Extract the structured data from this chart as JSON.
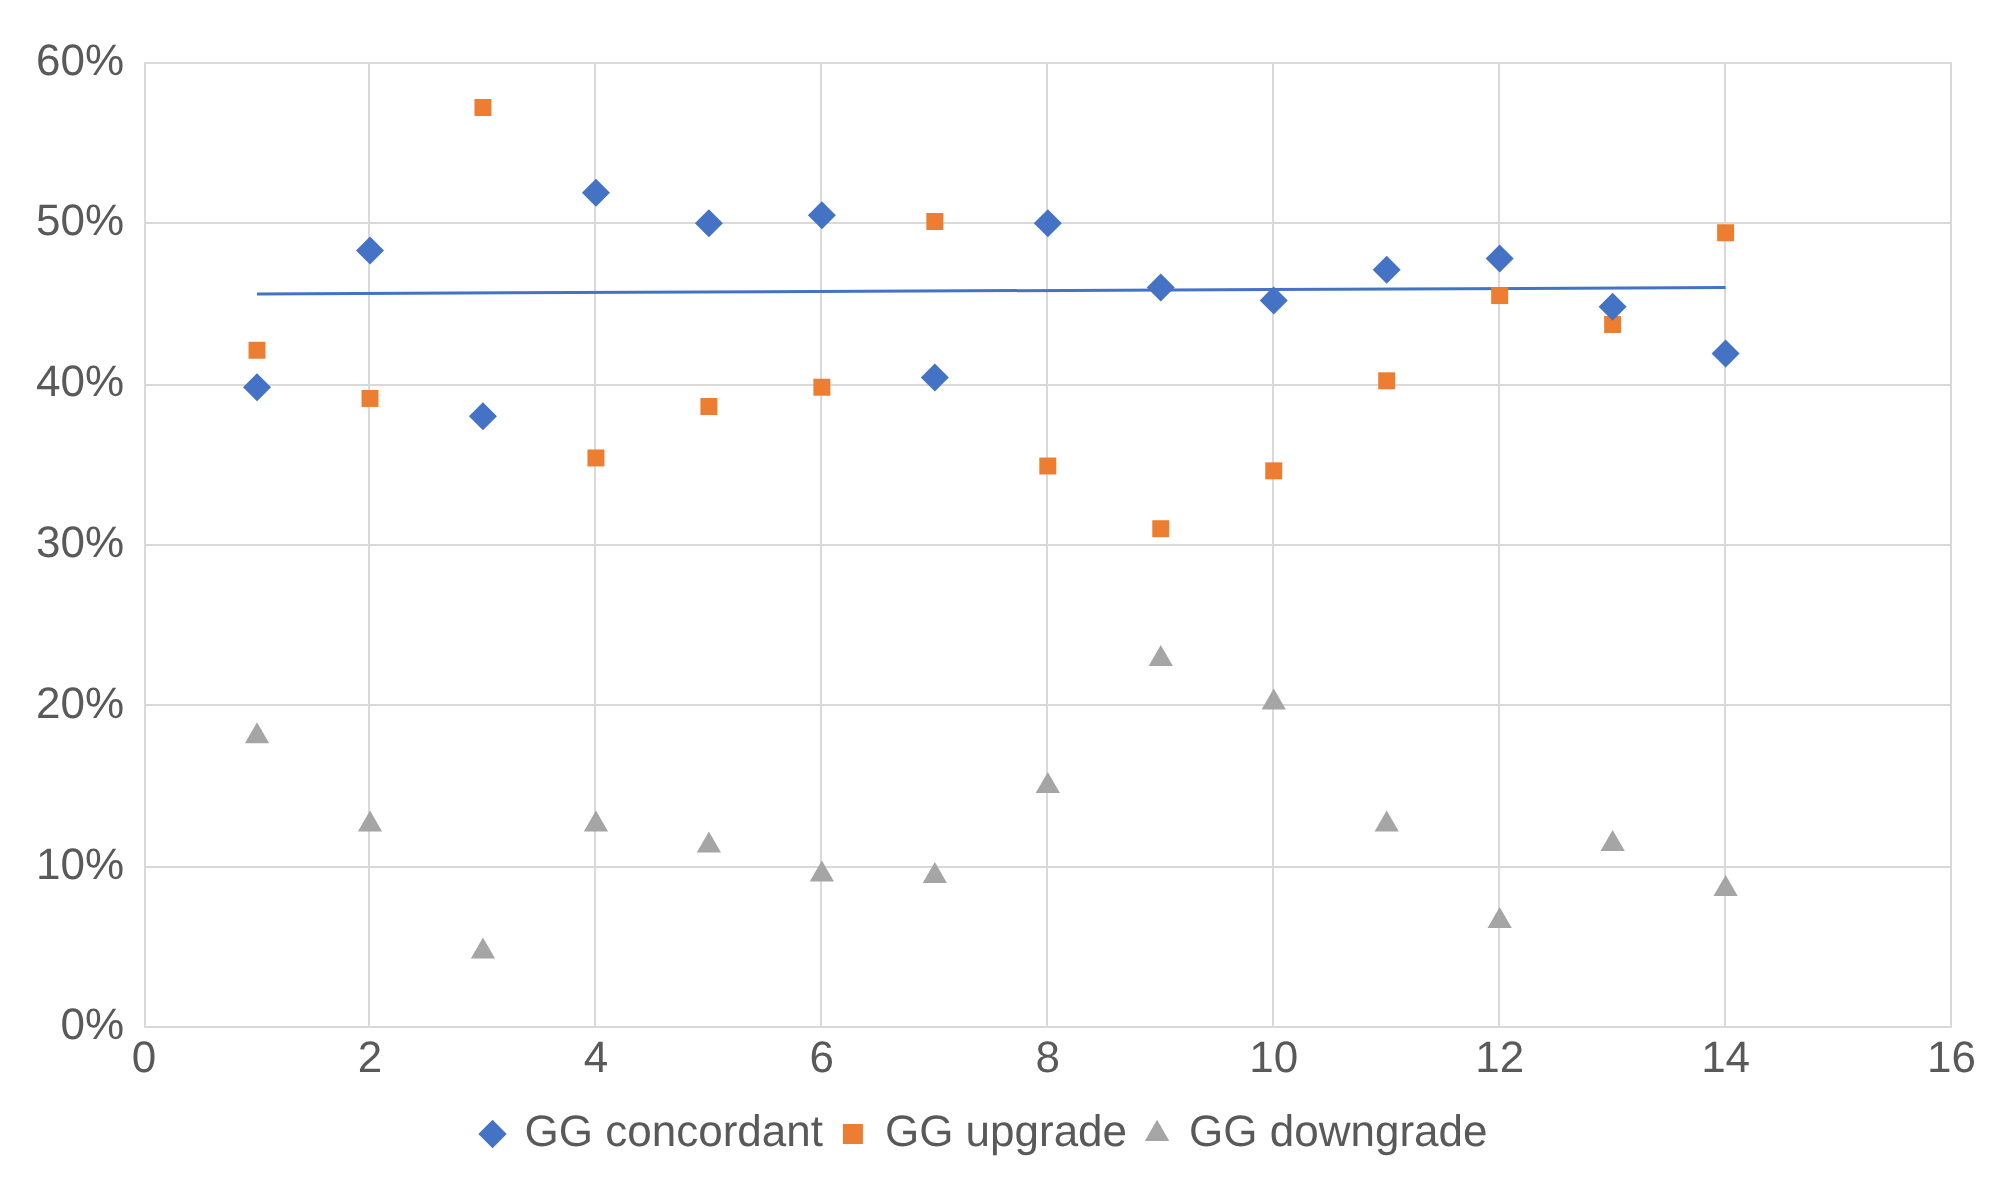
{
  "chart_data": {
    "type": "scatter",
    "xlim": [
      0,
      16
    ],
    "xticks": [
      0,
      2,
      4,
      6,
      8,
      10,
      12,
      14,
      16
    ],
    "ylim": [
      0,
      60
    ],
    "yticks": [
      {
        "value": 0,
        "label": "0%"
      },
      {
        "value": 10,
        "label": "10%"
      },
      {
        "value": 20,
        "label": "20%"
      },
      {
        "value": 30,
        "label": "30%"
      },
      {
        "value": 40,
        "label": "40%"
      },
      {
        "value": 50,
        "label": "50%"
      },
      {
        "value": 60,
        "label": "60%"
      }
    ],
    "grid": true,
    "legend": "bottom",
    "x": [
      1,
      2,
      3,
      4,
      5,
      6,
      7,
      8,
      9,
      10,
      11,
      12,
      13,
      14
    ],
    "series": [
      {
        "name": "GG concordant",
        "color": "#4472c4",
        "marker": "diamond",
        "values": [
          39.8,
          48.3,
          38.0,
          51.9,
          50.0,
          50.5,
          40.4,
          50.0,
          46.0,
          45.2,
          47.1,
          47.8,
          44.8,
          41.9
        ]
      },
      {
        "name": "GG upgrade",
        "color": "#ed7d31",
        "marker": "square",
        "values": [
          42.1,
          39.1,
          57.2,
          35.4,
          38.6,
          39.8,
          50.1,
          34.9,
          31.0,
          34.6,
          40.2,
          45.5,
          43.7,
          49.4
        ]
      },
      {
        "name": "GG downgrade",
        "color": "#a5a5a5",
        "marker": "triangle",
        "values": [
          18.1,
          12.6,
          4.7,
          12.6,
          11.3,
          9.5,
          9.4,
          15.0,
          22.9,
          20.2,
          12.6,
          6.6,
          11.4,
          8.6
        ]
      },
      {
        "type": "line",
        "color": "#4472c4",
        "marker": "none",
        "line_style": "solid",
        "x": [
          1,
          14
        ],
        "values": [
          45.6,
          46.0
        ]
      }
    ]
  }
}
